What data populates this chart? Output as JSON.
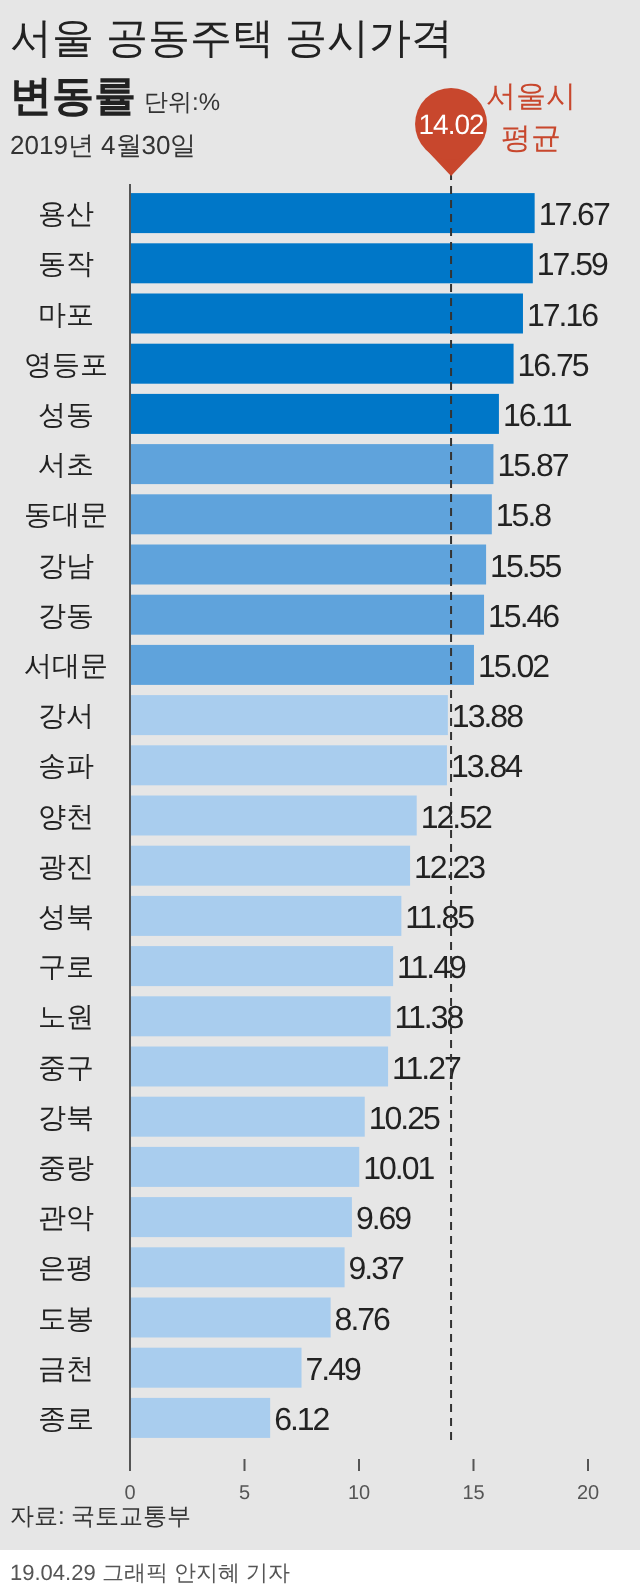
{
  "chart_data": {
    "type": "bar",
    "orientation": "horizontal",
    "title": "서울 공동주택 공시가격 변동률",
    "subtitle": "단위:%",
    "categories": [
      "용산",
      "동작",
      "마포",
      "영등포",
      "성동",
      "서초",
      "동대문",
      "강남",
      "강동",
      "서대문",
      "강서",
      "송파",
      "양천",
      "광진",
      "성북",
      "구로",
      "노원",
      "중구",
      "강북",
      "중랑",
      "관악",
      "은평",
      "도봉",
      "금천",
      "종로"
    ],
    "values": [
      17.67,
      17.59,
      17.16,
      16.75,
      16.11,
      15.87,
      15.8,
      15.55,
      15.46,
      15.02,
      13.88,
      13.84,
      12.52,
      12.23,
      11.85,
      11.49,
      11.38,
      11.27,
      10.25,
      10.01,
      9.69,
      9.37,
      8.76,
      7.49,
      6.12
    ],
    "colors": [
      "#0077c8",
      "#0077c8",
      "#0077c8",
      "#0077c8",
      "#0077c8",
      "#5fa3dc",
      "#5fa3dc",
      "#5fa3dc",
      "#5fa3dc",
      "#5fa3dc",
      "#a9cdee",
      "#a9cdee",
      "#a9cdee",
      "#a9cdee",
      "#a9cdee",
      "#a9cdee",
      "#a9cdee",
      "#a9cdee",
      "#a9cdee",
      "#a9cdee",
      "#a9cdee",
      "#a9cdee",
      "#a9cdee",
      "#a9cdee",
      "#a9cdee"
    ],
    "data_labels": true,
    "xlim": [
      0,
      20
    ],
    "xticks": [
      0,
      5,
      10,
      15,
      20
    ],
    "ref_lines": [
      {
        "axis": "x",
        "value": 14.02,
        "label": "서울시 평균",
        "color": "#333333",
        "line_style": "dashed"
      }
    ],
    "annotations": [
      "2019년 4월30일",
      "자료: 국토교통부",
      "19.04.29 그래픽 안지혜 기자",
      "14.02"
    ]
  }
}
